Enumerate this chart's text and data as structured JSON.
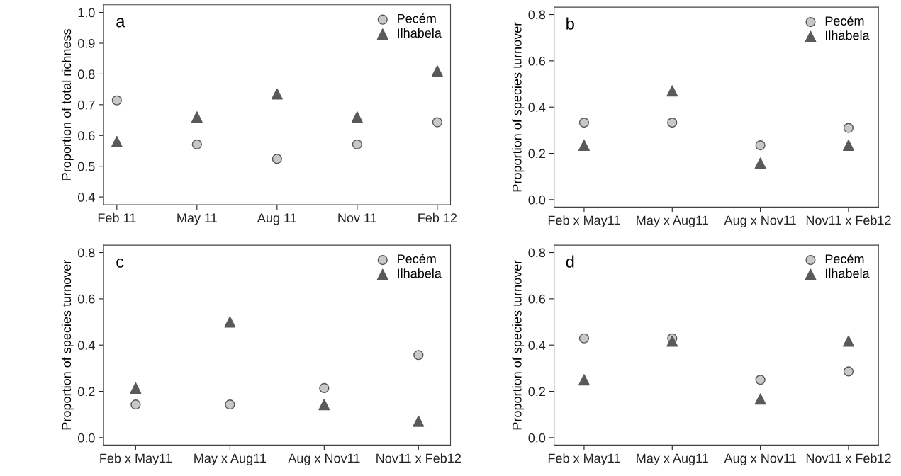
{
  "chart_data": [
    {
      "type": "scatter",
      "ylabel": "Proportion of total richness",
      "annotations": [
        "a"
      ],
      "categories": [
        "Feb 11",
        "May 11",
        "Aug 11",
        "Nov 11",
        "Feb 12"
      ],
      "ylim": [
        0.375,
        1.025
      ],
      "yticks": [
        {
          "value": 0.4,
          "label": "0.4"
        },
        {
          "value": 0.5,
          "label": "0.5"
        },
        {
          "value": 0.6,
          "label": "0.6"
        },
        {
          "value": 0.7,
          "label": "0.7"
        },
        {
          "value": 0.8,
          "label": "0.8"
        },
        {
          "value": 0.9,
          "label": "0.9"
        },
        {
          "value": 1.0,
          "label": "1.0"
        }
      ],
      "legend": "top right",
      "grid": false,
      "series": [
        {
          "name": "Pecém",
          "color": "#c8c8c8",
          "marker": "circle",
          "values": [
            0.714,
            0.571,
            0.524,
            0.571,
            0.643
          ]
        },
        {
          "name": "Ilhabela",
          "color": "#5a5a5a",
          "marker": "triangle",
          "values": [
            0.58,
            0.66,
            0.735,
            0.66,
            0.81
          ]
        }
      ]
    },
    {
      "type": "scatter",
      "ylabel": "Proportion of species turnover",
      "annotations": [
        "b"
      ],
      "categories": [
        "Feb x May11",
        "May x Aug11",
        "Aug x Nov11",
        "Nov11 x Feb12"
      ],
      "ylim": [
        -0.032,
        0.832
      ],
      "yticks": [
        {
          "value": 0.0,
          "label": "0.0"
        },
        {
          "value": 0.2,
          "label": "0.2"
        },
        {
          "value": 0.4,
          "label": "0.4"
        },
        {
          "value": 0.6,
          "label": "0.6"
        },
        {
          "value": 0.8,
          "label": "0.8"
        }
      ],
      "legend": "top right",
      "grid": false,
      "series": [
        {
          "name": "Pecém",
          "color": "#c8c8c8",
          "marker": "circle",
          "values": [
            0.333,
            0.333,
            0.235,
            0.31
          ]
        },
        {
          "name": "Ilhabela",
          "color": "#5a5a5a",
          "marker": "triangle",
          "values": [
            0.235,
            0.47,
            0.158,
            0.235
          ]
        }
      ]
    },
    {
      "type": "scatter",
      "ylabel": "Proportion of species turnover",
      "annotations": [
        "c"
      ],
      "categories": [
        "Feb x May11",
        "May x Aug11",
        "Aug x Nov11",
        "Nov11 x Feb12"
      ],
      "ylim": [
        -0.032,
        0.832
      ],
      "yticks": [
        {
          "value": 0.0,
          "label": "0.0"
        },
        {
          "value": 0.2,
          "label": "0.2"
        },
        {
          "value": 0.4,
          "label": "0.4"
        },
        {
          "value": 0.6,
          "label": "0.6"
        },
        {
          "value": 0.8,
          "label": "0.8"
        }
      ],
      "legend": "top right",
      "grid": false,
      "series": [
        {
          "name": "Pecém",
          "color": "#c8c8c8",
          "marker": "circle",
          "values": [
            0.143,
            0.143,
            0.214,
            0.357
          ]
        },
        {
          "name": "Ilhabela",
          "color": "#5a5a5a",
          "marker": "triangle",
          "values": [
            0.214,
            0.5,
            0.143,
            0.071
          ]
        }
      ]
    },
    {
      "type": "scatter",
      "ylabel": "Proportion of species turnover",
      "annotations": [
        "d"
      ],
      "categories": [
        "Feb x May11",
        "May x Aug11",
        "Aug x Nov11",
        "Nov11 x Feb12"
      ],
      "ylim": [
        -0.032,
        0.832
      ],
      "yticks": [
        {
          "value": 0.0,
          "label": "0.0"
        },
        {
          "value": 0.2,
          "label": "0.2"
        },
        {
          "value": 0.4,
          "label": "0.4"
        },
        {
          "value": 0.6,
          "label": "0.6"
        },
        {
          "value": 0.8,
          "label": "0.8"
        }
      ],
      "legend": "top right",
      "grid": false,
      "series": [
        {
          "name": "Pecém",
          "color": "#c8c8c8",
          "marker": "circle",
          "values": [
            0.429,
            0.429,
            0.25,
            0.286
          ]
        },
        {
          "name": "Ilhabela",
          "color": "#5a5a5a",
          "marker": "triangle",
          "values": [
            0.25,
            0.417,
            0.167,
            0.417
          ]
        }
      ]
    }
  ]
}
